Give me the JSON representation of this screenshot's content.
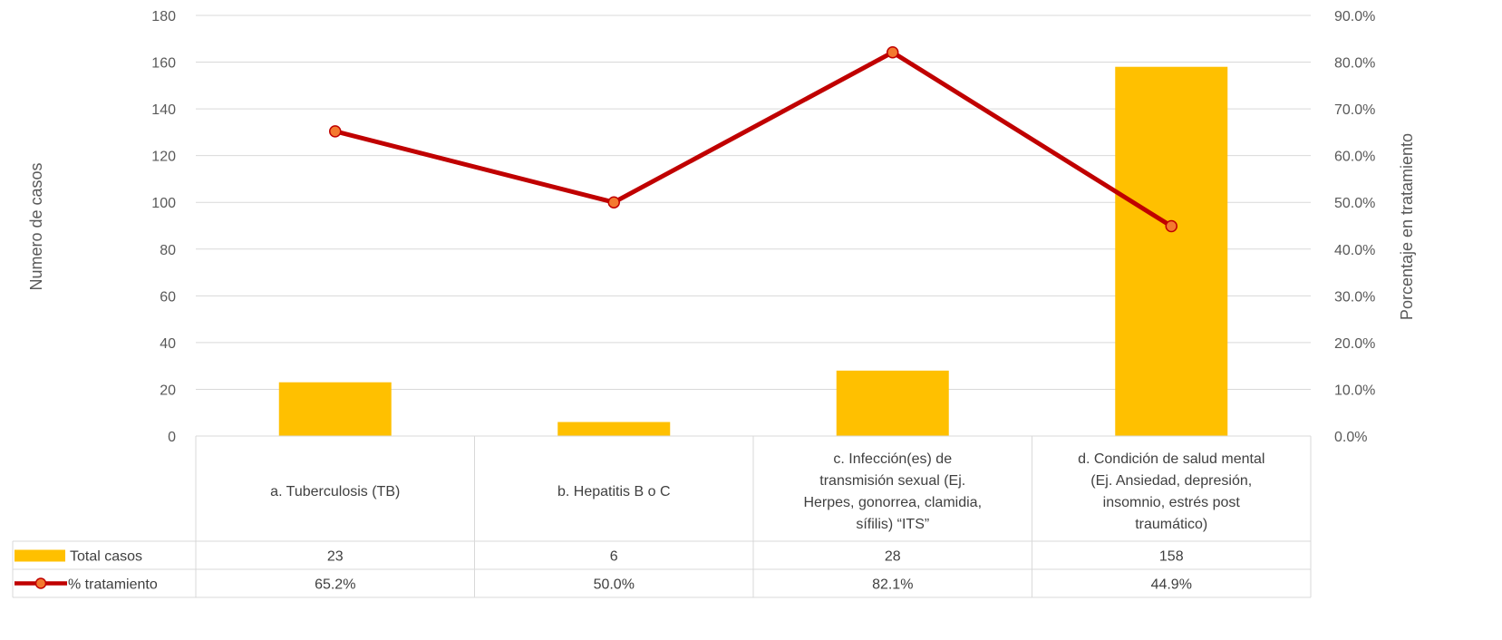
{
  "chart_data": {
    "type": "bar",
    "categories": [
      [
        "a. Tuberculosis (TB)"
      ],
      [
        "b. Hepatitis B o C"
      ],
      [
        "c.  Infección(es) de",
        "transmisión sexual (Ej.",
        "Herpes, gonorrea, clamidia,",
        "sífilis) “ITS”"
      ],
      [
        "d. Condición de salud mental",
        "(Ej. Ansiedad, depresión,",
        "insomnio, estrés post",
        "traumático)"
      ]
    ],
    "series": [
      {
        "name": "Total casos",
        "type": "bar",
        "axis": "left",
        "values": [
          23,
          6,
          28,
          158
        ],
        "labels": [
          "23",
          "6",
          "28",
          "158"
        ],
        "color": "#FFC000"
      },
      {
        "name": "% tratamiento",
        "type": "line",
        "axis": "right",
        "values": [
          65.2,
          50.0,
          82.1,
          44.9
        ],
        "labels": [
          "65.2%",
          "50.0%",
          "82.1%",
          "44.9%"
        ],
        "color": "#C00000",
        "marker_color": "#F4792F"
      }
    ],
    "ylabel": "Numero de casos",
    "y2label": "Porcentaje en tratamiento",
    "ylim": [
      0,
      180
    ],
    "y2lim": [
      0,
      90
    ],
    "yticks": [
      "0",
      "20",
      "40",
      "60",
      "80",
      "100",
      "120",
      "140",
      "160",
      "180"
    ],
    "y2ticks": [
      "0.0%",
      "10.0%",
      "20.0%",
      "30.0%",
      "40.0%",
      "50.0%",
      "60.0%",
      "70.0%",
      "80.0%",
      "90.0%"
    ],
    "grid": true,
    "legend": "data-table"
  }
}
